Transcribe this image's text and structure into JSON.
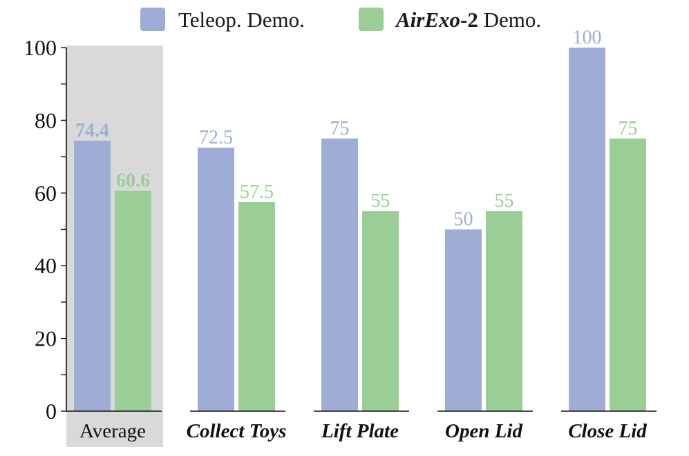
{
  "chart_data": {
    "type": "bar",
    "categories": [
      "Average",
      "Collect Toys",
      "Lift Plate",
      "Open Lid",
      "Close Lid"
    ],
    "series": [
      {
        "name": "Teleop. Demo.",
        "color": "#9FADD6",
        "values": [
          74.4,
          72.5,
          75,
          50,
          100
        ]
      },
      {
        "name_italic": "AirExo",
        "name_bold_suffix": "-2",
        "name_rest": " Demo.",
        "color": "#9BCD96",
        "values": [
          60.6,
          57.5,
          55,
          55,
          75
        ]
      }
    ],
    "value_labels": [
      [
        "74.4",
        "72.5",
        "75",
        "50",
        "100"
      ],
      [
        "60.6",
        "57.5",
        "55",
        "55",
        "75"
      ]
    ],
    "highlight_category": "Average",
    "highlight_color": "#D9D9D9",
    "ylim": [
      0,
      100
    ],
    "yticks": [
      "0",
      "20",
      "40",
      "60",
      "80",
      "100"
    ],
    "ytick_values": [
      0,
      20,
      40,
      60,
      80,
      100
    ],
    "legend_position": "top",
    "grid": false
  }
}
